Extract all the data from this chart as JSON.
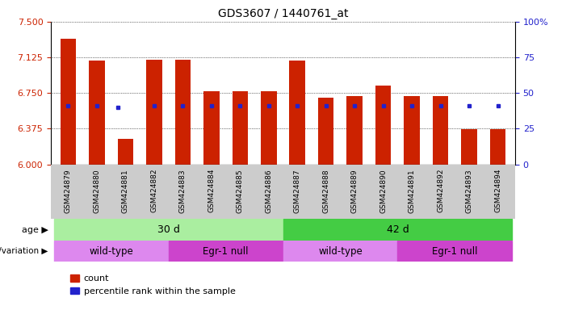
{
  "title": "GDS3607 / 1440761_at",
  "samples": [
    "GSM424879",
    "GSM424880",
    "GSM424881",
    "GSM424882",
    "GSM424883",
    "GSM424884",
    "GSM424885",
    "GSM424886",
    "GSM424887",
    "GSM424888",
    "GSM424889",
    "GSM424890",
    "GSM424891",
    "GSM424892",
    "GSM424893",
    "GSM424894"
  ],
  "bar_heights": [
    7.32,
    7.09,
    6.27,
    7.1,
    7.1,
    6.77,
    6.77,
    6.77,
    7.09,
    6.7,
    6.72,
    6.83,
    6.72,
    6.72,
    6.37,
    6.37
  ],
  "blue_dot_y": [
    6.62,
    6.62,
    6.6,
    6.62,
    6.62,
    6.62,
    6.62,
    6.62,
    6.62,
    6.62,
    6.62,
    6.62,
    6.62,
    6.62,
    6.62,
    6.62
  ],
  "blue_dot_x_offset": [
    0,
    0,
    -0.25,
    0,
    0,
    0,
    0,
    0,
    0,
    0,
    0,
    0,
    0,
    0,
    0,
    0
  ],
  "ylim_left": [
    6.0,
    7.5
  ],
  "ylim_right": [
    0,
    100
  ],
  "yticks_left": [
    6.0,
    6.375,
    6.75,
    7.125,
    7.5
  ],
  "yticks_right": [
    0,
    25,
    50,
    75,
    100
  ],
  "bar_color": "#cc2200",
  "blue_color": "#2222cc",
  "bar_bottom": 6.0,
  "age_color_30": "#aaeea0",
  "age_color_42": "#44cc44",
  "genotype_wt_color": "#dd88ee",
  "genotype_egr_color": "#cc44cc",
  "label_age": "age",
  "label_genotype": "genotype/variation",
  "label_30d": "30 d",
  "label_42d": "42 d",
  "label_wt": "wild-type",
  "label_egr": "Egr-1 null",
  "legend_count": "count",
  "legend_percentile": "percentile rank within the sample",
  "tick_bg_color": "#cccccc"
}
